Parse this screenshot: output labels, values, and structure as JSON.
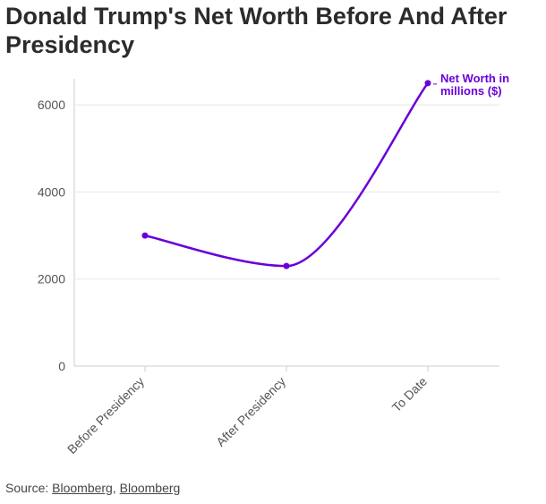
{
  "title": "Donald Trump's Net Worth Before And After Presidency",
  "source": {
    "prefix": "Source:",
    "links": [
      "Bloomberg",
      "Bloomberg"
    ]
  },
  "colors": {
    "series": "#6a00d8",
    "grid": "#e8e8e8",
    "axis": "#cccccc"
  },
  "chart_data": {
    "type": "line",
    "categories": [
      "Before Presidency",
      "After Presidency",
      "To Date"
    ],
    "series": [
      {
        "name": "Net Worth in millions ($)",
        "values": [
          3000,
          2300,
          6500
        ]
      }
    ],
    "yticks": [
      0,
      2000,
      4000,
      6000
    ],
    "ylim": [
      0,
      6600
    ],
    "grid": true,
    "smooth": true,
    "legend": "inline label at end of line (top-right)"
  }
}
